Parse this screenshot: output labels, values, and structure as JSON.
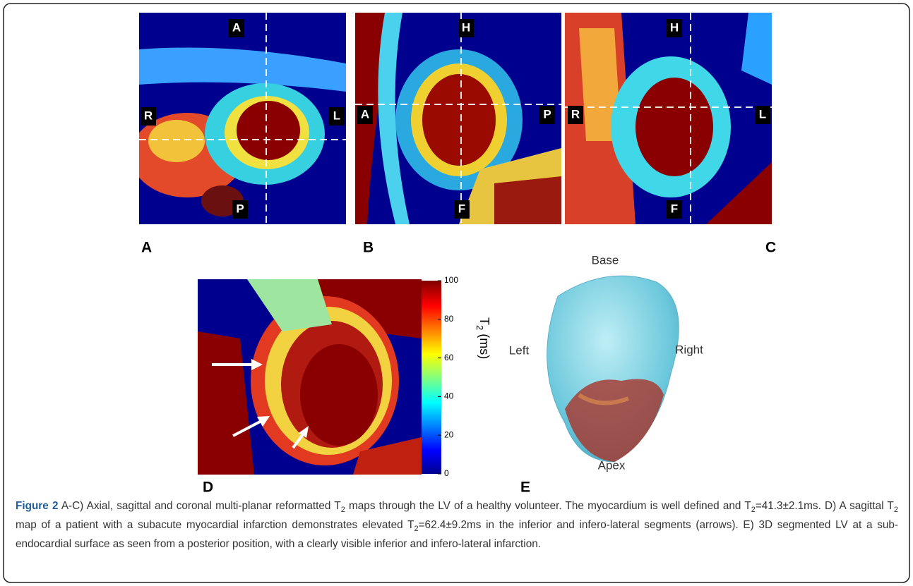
{
  "panels": [
    {
      "letter": "A",
      "labels": {
        "top": "A",
        "left": "R",
        "right": "L",
        "bottom": "P"
      }
    },
    {
      "letter": "B",
      "labels": {
        "top": "H",
        "left": "A",
        "right": "P",
        "bottom": "F"
      }
    },
    {
      "letter": "C",
      "labels": {
        "top": "H",
        "left": "R",
        "right": "L",
        "bottom": "F"
      }
    }
  ],
  "panel_d": {
    "letter": "D"
  },
  "colorbar": {
    "ticks": [
      0,
      20,
      40,
      60,
      80,
      100
    ],
    "range": [
      0,
      100
    ],
    "label": "T",
    "label_sub": "2",
    "label_unit": " (ms)"
  },
  "panel_e": {
    "letter": "E",
    "labels": {
      "top": "Base",
      "left": "Left",
      "right": "Right",
      "bottom": "Apex"
    }
  },
  "caption": {
    "label": "Figure 2",
    "runs": [
      {
        "text": " A-C) Axial, sagittal and coronal multi-planar reformatted T"
      },
      {
        "text": "2",
        "sub": true
      },
      {
        "text": " maps through the LV of a healthy volunteer. The myocardium is well defined and T"
      },
      {
        "text": "2",
        "sub": true
      },
      {
        "text": "=41.3±2.1ms. D) A sagittal T"
      },
      {
        "text": "2",
        "sub": true
      },
      {
        "text": " map of a patient with a subacute myocardial infarction demonstrates elevated T"
      },
      {
        "text": "2",
        "sub": true
      },
      {
        "text": "=62.4±9.2ms in the inferior and infero-lateral segments (arrows). E) 3D segmented LV at a sub-endocardial surface as seen from a posterior position, with a clearly visible inferior and infero-lateral infarction."
      }
    ]
  }
}
